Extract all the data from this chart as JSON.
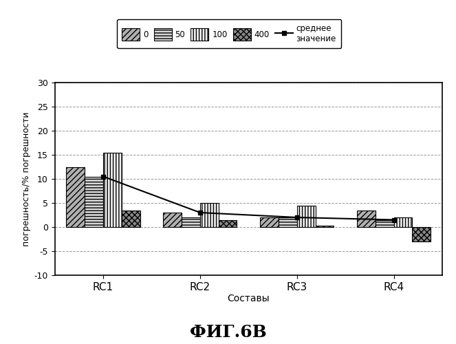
{
  "categories": [
    "RC1",
    "RC2",
    "RC3",
    "RC4"
  ],
  "series_labels": [
    "0",
    "50",
    "100",
    "400"
  ],
  "values": {
    "0": [
      12.5,
      3.0,
      2.0,
      3.5
    ],
    "50": [
      10.5,
      2.0,
      2.0,
      1.5
    ],
    "100": [
      15.5,
      5.0,
      4.5,
      2.0
    ],
    "400": [
      3.5,
      1.5,
      0.3,
      -3.0
    ]
  },
  "mean_values": [
    10.5,
    3.0,
    2.0,
    1.5
  ],
  "ylabel": "погрешность/% погрешности",
  "xlabel": "Составы",
  "title_bottom": "ФИГ.6В",
  "legend_mean": "среднее\nзначение",
  "ylim": [
    -10,
    30
  ],
  "yticks": [
    -10,
    -5,
    0,
    5,
    10,
    15,
    20,
    25,
    30
  ],
  "background_color": "#ffffff",
  "bar_edge_color": "#000000",
  "hatches": [
    "////",
    "====",
    "||||",
    "\\\\\\\\"
  ],
  "bar_facecolors": [
    "#aaaaaa",
    "#cccccc",
    "#ffffff",
    "#888888"
  ],
  "grid_color": "#555555",
  "mean_line_color": "#000000",
  "bar_width": 0.19
}
